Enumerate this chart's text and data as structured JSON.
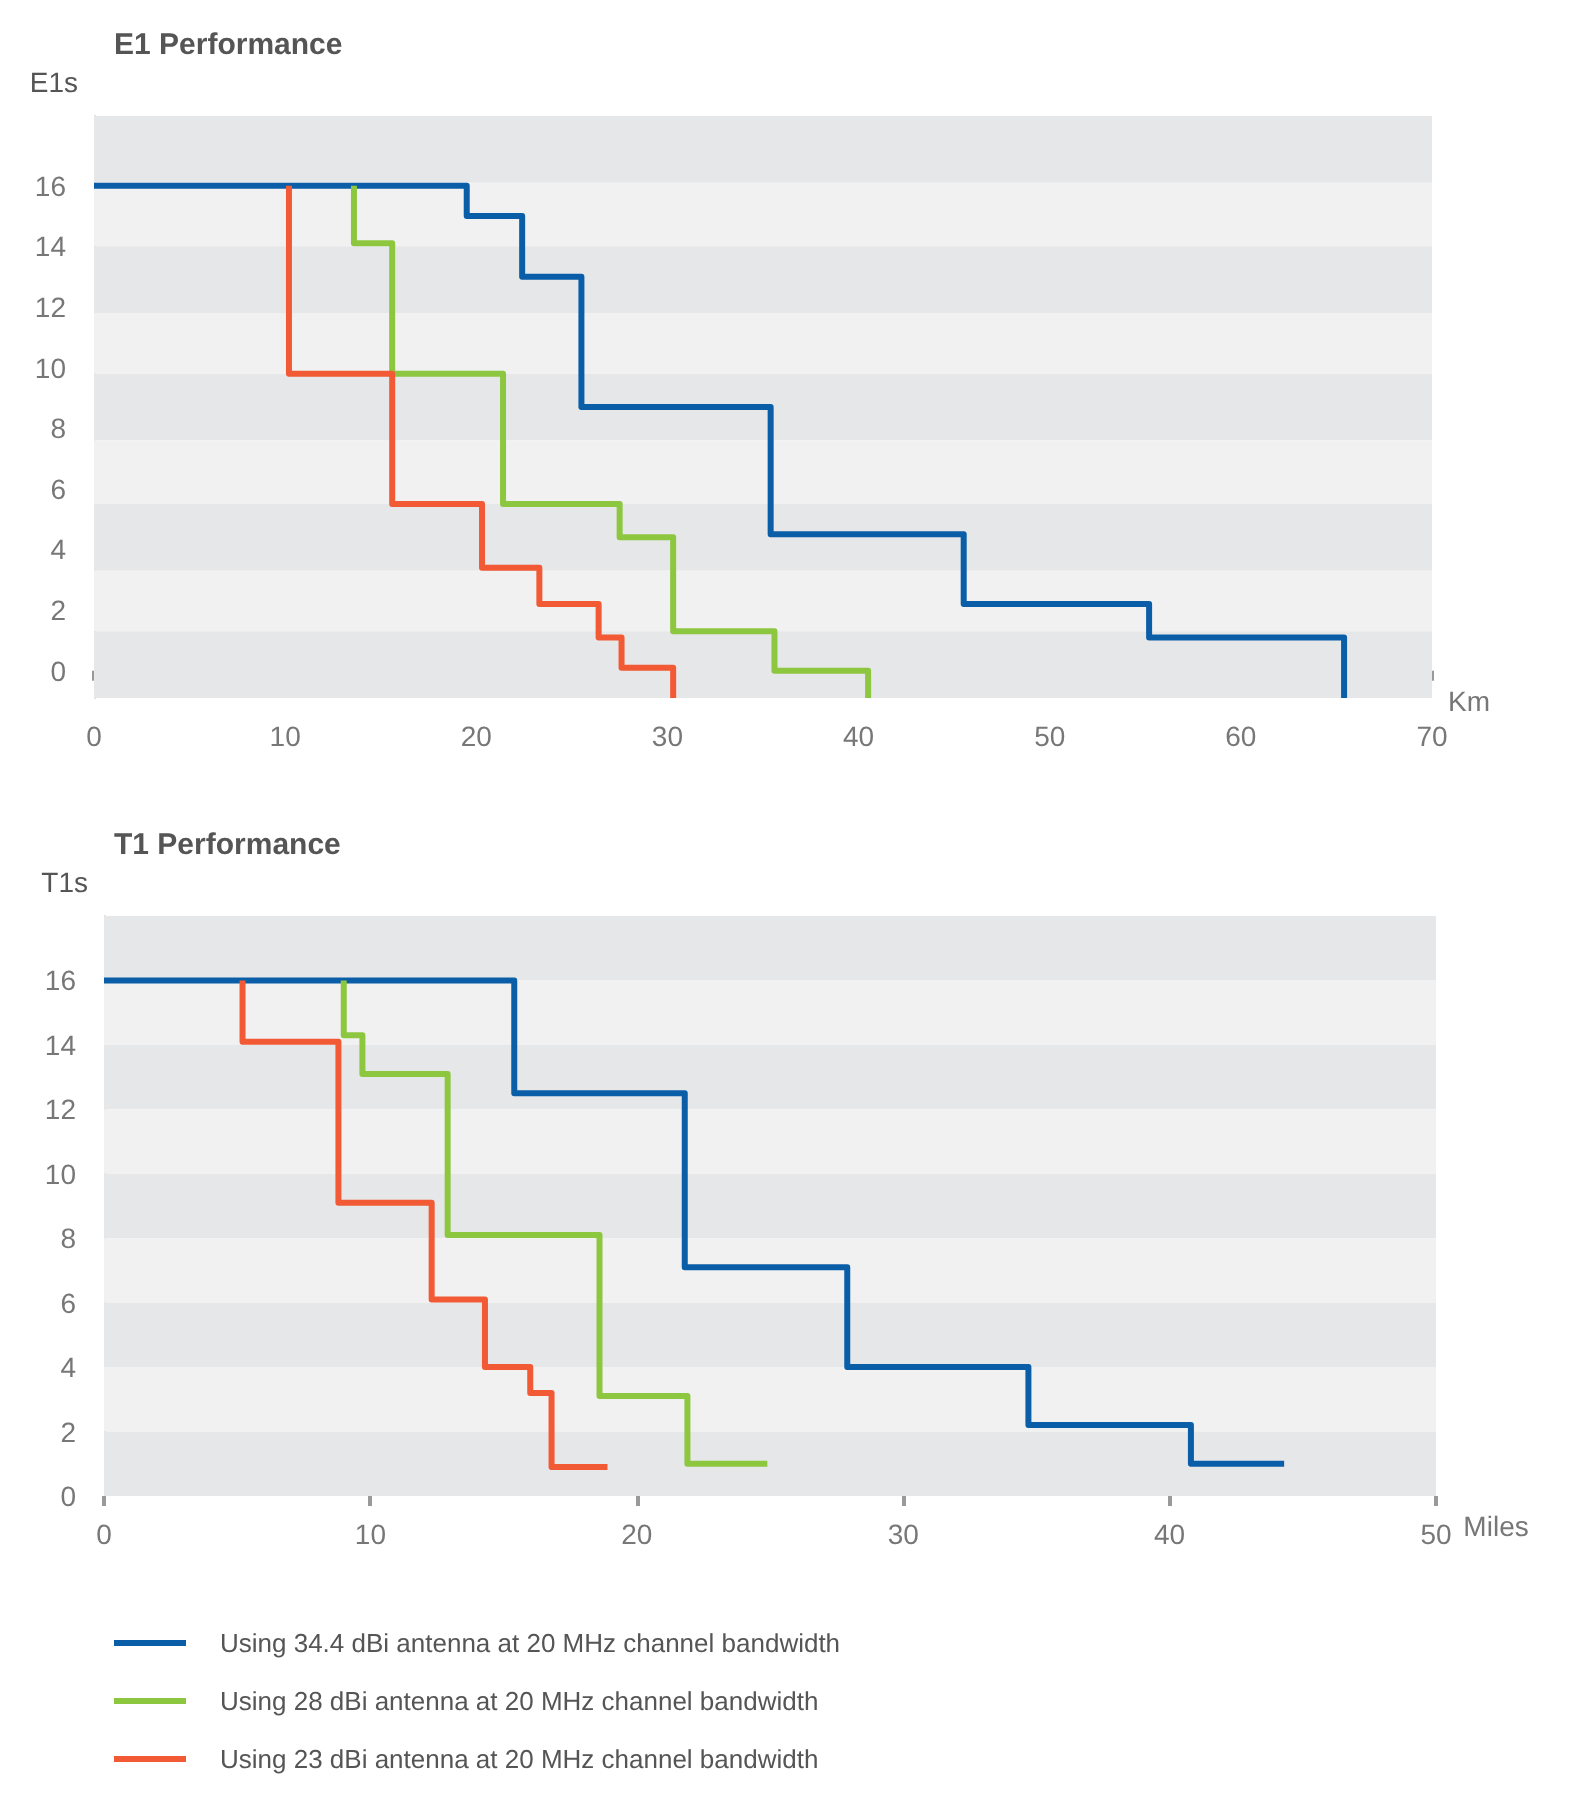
{
  "chart_data": [
    {
      "type": "step",
      "title": "E1 Performance",
      "xlabel": "Km",
      "ylabel": "E1s",
      "xlim": [
        0,
        70
      ],
      "xticks": [
        0,
        10,
        20,
        30,
        40,
        50,
        60,
        70
      ],
      "ylim": [
        -0.9,
        18.3
      ],
      "yticks": [
        0,
        2,
        4,
        6,
        8,
        10,
        12,
        14,
        16
      ],
      "legend": false,
      "bands": [
        {
          "axis": "y",
          "from": 16.1,
          "to": 18.3,
          "color": "#e6e7e8"
        },
        {
          "axis": "y",
          "from": 14.0,
          "to": 16.1,
          "color": "#f1f1f1"
        },
        {
          "axis": "y",
          "from": 11.8,
          "to": 14.0,
          "color": "#e6e7e8"
        },
        {
          "axis": "y",
          "from": 9.8,
          "to": 11.8,
          "color": "#f1f1f1"
        },
        {
          "axis": "y",
          "from": 7.6,
          "to": 9.8,
          "color": "#e6e7e8"
        },
        {
          "axis": "y",
          "from": 5.5,
          "to": 7.6,
          "color": "#f1f1f1"
        },
        {
          "axis": "y",
          "from": 3.3,
          "to": 5.5,
          "color": "#e6e7e8"
        },
        {
          "axis": "y",
          "from": 1.3,
          "to": 3.3,
          "color": "#f1f1f1"
        },
        {
          "axis": "y",
          "from": -0.9,
          "to": 1.3,
          "color": "#e6e7e8"
        }
      ],
      "series": [
        {
          "color": "#0a5ea8",
          "x": [
            0,
            19.5,
            22.4,
            25.5,
            35.4,
            45.5,
            55.2,
            65.4
          ],
          "values": [
            16,
            15,
            13,
            8.7,
            4.5,
            2.2,
            1.1,
            -0.9
          ]
        },
        {
          "color": "#8dc63f",
          "x": [
            13.6,
            13.6,
            15.6,
            21.4,
            27.5,
            30.3,
            35.6,
            40.5
          ],
          "values": [
            16,
            14.1,
            9.8,
            5.5,
            4.4,
            1.3,
            0,
            -0.9
          ]
        },
        {
          "color": "#f15a35",
          "x": [
            10.2,
            10.2,
            15.6,
            20.3,
            23.3,
            26.4,
            27.6,
            30.3
          ],
          "values": [
            16,
            9.8,
            5.5,
            3.4,
            2.2,
            1.1,
            0.1,
            -0.9
          ]
        }
      ]
    },
    {
      "type": "step",
      "title": "T1 Performance",
      "xlabel": "Miles",
      "ylabel": "T1s",
      "xlim": [
        0,
        50
      ],
      "xticks": [
        0,
        10,
        20,
        30,
        40,
        50
      ],
      "ylim": [
        0,
        18
      ],
      "yticks": [
        0,
        2,
        4,
        6,
        8,
        10,
        12,
        14,
        16
      ],
      "legend": "bottom",
      "bands": [
        {
          "axis": "y",
          "from": 16,
          "to": 18,
          "color": "#e6e7e8"
        },
        {
          "axis": "y",
          "from": 14,
          "to": 16,
          "color": "#f1f1f1"
        },
        {
          "axis": "y",
          "from": 12,
          "to": 14,
          "color": "#e6e7e8"
        },
        {
          "axis": "y",
          "from": 10,
          "to": 12,
          "color": "#f1f1f1"
        },
        {
          "axis": "y",
          "from": 8,
          "to": 10,
          "color": "#e6e7e8"
        },
        {
          "axis": "y",
          "from": 6,
          "to": 8,
          "color": "#f1f1f1"
        },
        {
          "axis": "y",
          "from": 4,
          "to": 6,
          "color": "#e6e7e8"
        },
        {
          "axis": "y",
          "from": 2,
          "to": 4,
          "color": "#f1f1f1"
        },
        {
          "axis": "y",
          "from": 0,
          "to": 2,
          "color": "#e6e7e8"
        }
      ],
      "series": [
        {
          "name": "Using 34.4 dBi antenna at 20 MHz channel bandwidth",
          "color": "#0a5ea8",
          "x": [
            0,
            15.4,
            21.8,
            27.9,
            34.7,
            40.8,
            44.3
          ],
          "values": [
            16,
            12.5,
            7.1,
            4.0,
            2.2,
            1.0,
            1.0
          ]
        },
        {
          "name": "Using 28 dBi antenna at 20 MHz channel bandwidth",
          "color": "#8dc63f",
          "x": [
            9.0,
            9.0,
            9.7,
            12.9,
            18.6,
            21.9,
            24.9
          ],
          "values": [
            16,
            14.3,
            13.1,
            8.1,
            3.1,
            1.0,
            1.0
          ]
        },
        {
          "name": "Using 23 dBi antenna at 20 MHz channel bandwidth",
          "color": "#f15a35",
          "x": [
            5.2,
            5.2,
            8.8,
            12.3,
            14.3,
            16.0,
            16.8,
            18.9
          ],
          "values": [
            16,
            14.1,
            9.1,
            6.1,
            4.0,
            3.2,
            0.9,
            0.9
          ]
        }
      ]
    }
  ]
}
